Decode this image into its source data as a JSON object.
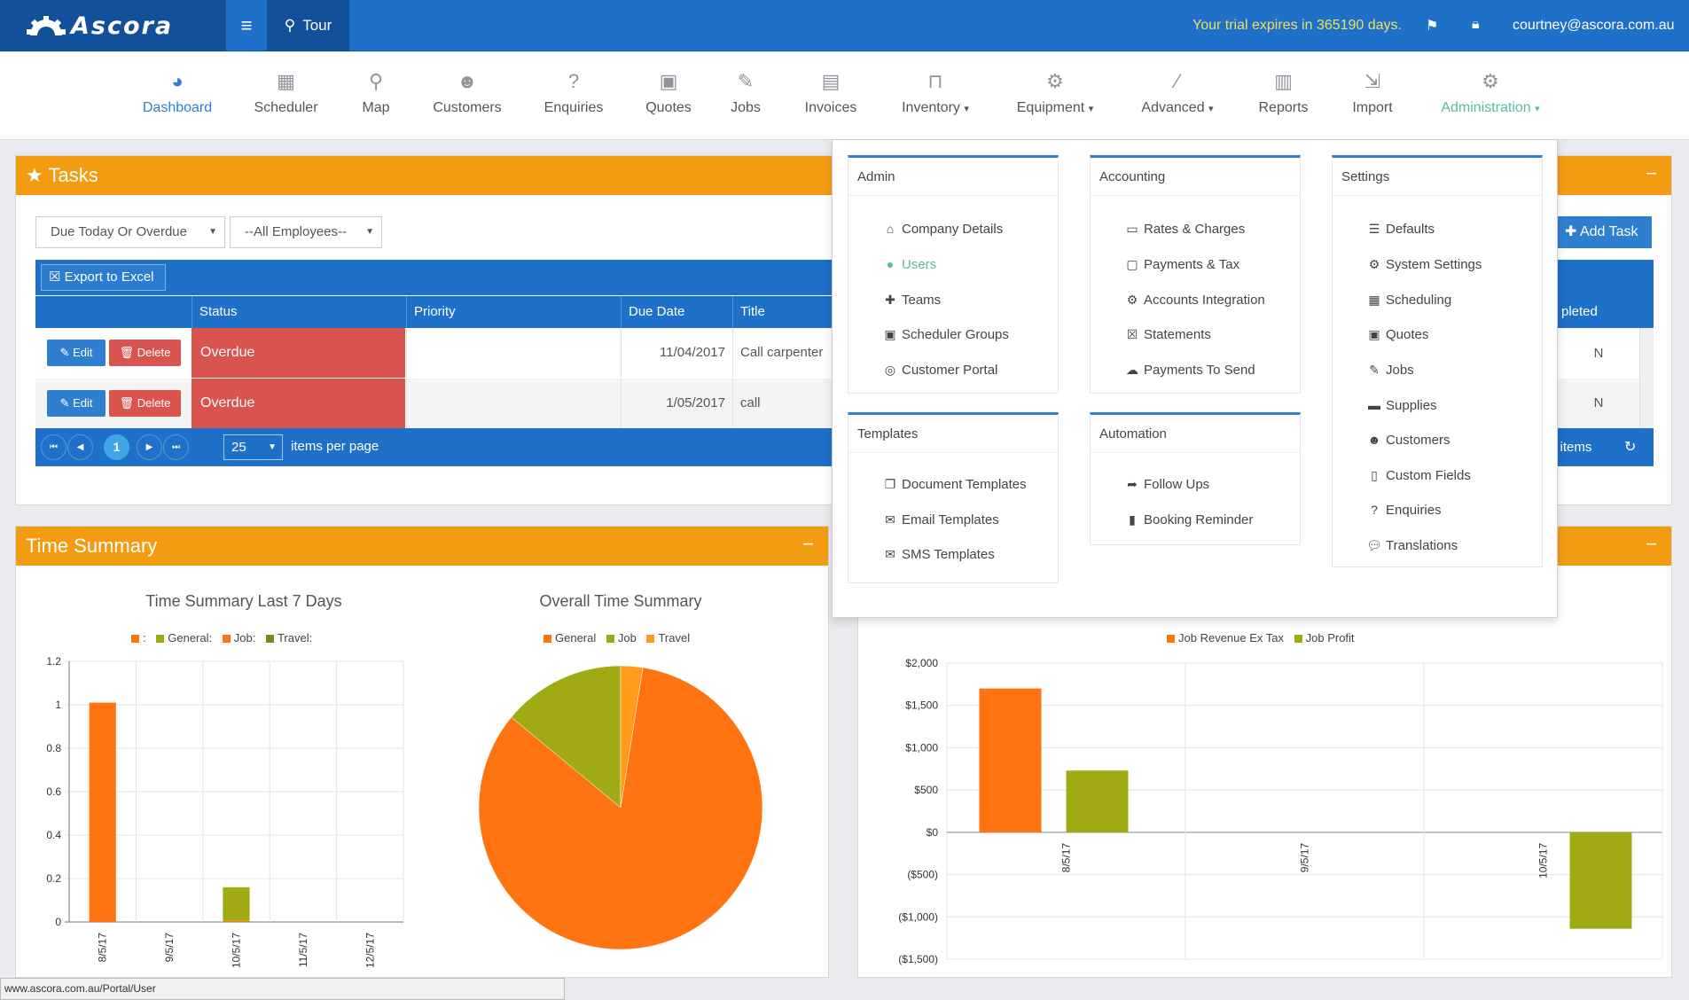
{
  "header": {
    "logo": "Ascora",
    "tour_label": "Tour",
    "trial_text": "Your trial expires in 365190 days.",
    "user_email": "courtney@ascora.com.au"
  },
  "nav": [
    {
      "label": "Dashboard",
      "icon": "dashboard-icon"
    },
    {
      "label": "Scheduler",
      "icon": "calendar-icon"
    },
    {
      "label": "Map",
      "icon": "map-marker-icon"
    },
    {
      "label": "Customers",
      "icon": "users-icon"
    },
    {
      "label": "Enquiries",
      "icon": "question-icon"
    },
    {
      "label": "Quotes",
      "icon": "briefcase-icon"
    },
    {
      "label": "Jobs",
      "icon": "wrench-icon"
    },
    {
      "label": "Invoices",
      "icon": "book-icon"
    },
    {
      "label": "Inventory",
      "icon": "inbox-icon"
    },
    {
      "label": "Equipment",
      "icon": "cog-icon"
    },
    {
      "label": "Advanced",
      "icon": "magic-icon"
    },
    {
      "label": "Reports",
      "icon": "bar-chart-icon"
    },
    {
      "label": "Import",
      "icon": "import-icon"
    },
    {
      "label": "Administration",
      "icon": "cogs-icon"
    }
  ],
  "tasks": {
    "title": "Tasks",
    "minimize": "−",
    "filter_due": "Due Today Or Overdue",
    "filter_employee": "--All Employees--",
    "export_label": "Export to Excel",
    "add_task_label": "Add Task",
    "columns": {
      "status": "Status",
      "priority": "Priority",
      "due_date": "Due Date",
      "title": "Title",
      "completed": "pleted"
    },
    "rows": [
      {
        "edit": "Edit",
        "delete": "Delete",
        "status": "Overdue",
        "priority": "",
        "due_date": "11/04/2017",
        "title": "Call carpenter",
        "completed": "N"
      },
      {
        "edit": "Edit",
        "delete": "Delete",
        "status": "Overdue",
        "priority": "",
        "due_date": "1/05/2017",
        "title": "call",
        "completed": "N"
      }
    ],
    "pager": {
      "current_page": "1",
      "page_size": "25",
      "items_per_page": "items per page",
      "items_label": "2 items"
    }
  },
  "time_summary": {
    "title": "Time Summary",
    "minimize": "−"
  },
  "revenue_panel": {
    "minimize": "−"
  },
  "admin_menu": {
    "admin": {
      "title": "Admin",
      "items": [
        "Company Details",
        "Users",
        "Teams",
        "Scheduler Groups",
        "Customer Portal"
      ]
    },
    "accounting": {
      "title": "Accounting",
      "items": [
        "Rates & Charges",
        "Payments & Tax",
        "Accounts Integration",
        "Statements",
        "Payments To Send"
      ]
    },
    "settings": {
      "title": "Settings",
      "items": [
        "Defaults",
        "System Settings",
        "Scheduling",
        "Quotes",
        "Jobs",
        "Supplies",
        "Customers",
        "Custom Fields",
        "Enquiries",
        "Translations"
      ]
    },
    "templates": {
      "title": "Templates",
      "items": [
        "Document Templates",
        "Email Templates",
        "SMS Templates"
      ]
    },
    "automation": {
      "title": "Automation",
      "items": [
        "Follow Ups",
        "Booking Reminder"
      ]
    }
  },
  "status_bar": "www.ascora.com.au/Portal/User",
  "chart_data": [
    {
      "type": "bar",
      "title": "Time Summary Last 7 Days",
      "legend": [
        {
          "label": ":",
          "color": "#ff7410"
        },
        {
          "label": "General:",
          "color": "#a0ab14"
        },
        {
          "label": "Job:",
          "color": "#ff7410"
        },
        {
          "label": "Travel:",
          "color": "#6f8f1e"
        }
      ],
      "categories": [
        "8/5/17",
        "9/5/17",
        "10/5/17",
        "11/5/17",
        "12/5/17"
      ],
      "series": [
        {
          "name": "Job:",
          "color": "#ff7410",
          "values": [
            1.01,
            0,
            0.005,
            0,
            0
          ]
        },
        {
          "name": "General:",
          "color": "#a0ab14",
          "values": [
            0,
            0,
            0.155,
            0,
            0
          ]
        }
      ],
      "ylim": [
        0,
        1.2
      ],
      "yticks": [
        "0",
        "0.2",
        "0.4",
        "0.6",
        "0.8",
        "1",
        "1.2"
      ],
      "grid": true
    },
    {
      "type": "pie",
      "title": "Overall Time Summary",
      "legend": [
        {
          "label": "General",
          "color": "#ff7410"
        },
        {
          "label": "Job",
          "color": "#a0ab14"
        },
        {
          "label": "Travel",
          "color": "#ff9a1a"
        }
      ],
      "slices": [
        {
          "label": "General",
          "value": 0.835,
          "color": "#ff7410"
        },
        {
          "label": "Job",
          "value": 0.14,
          "color": "#a0ab14"
        },
        {
          "label": "Travel",
          "value": 0.025,
          "color": "#ff9a1a"
        }
      ]
    },
    {
      "type": "bar",
      "legend": [
        {
          "label": "Job Revenue Ex Tax",
          "color": "#ff7410"
        },
        {
          "label": "Job Profit",
          "color": "#a0ab14"
        }
      ],
      "categories": [
        "8/5/17",
        "9/5/17",
        "10/5/17"
      ],
      "series": [
        {
          "name": "Job Revenue Ex Tax",
          "color": "#ff7410",
          "values": [
            1700,
            0,
            0
          ]
        },
        {
          "name": "Job Profit",
          "color": "#a0ab14",
          "values": [
            730,
            0,
            -1140
          ]
        }
      ],
      "ylim": [
        -1500,
        2000
      ],
      "yticks": [
        "$2,000",
        "$1,500",
        "$1,000",
        "$500",
        "$0",
        "($500)",
        "($1,000)",
        "($1,500)"
      ],
      "grid": true
    }
  ]
}
